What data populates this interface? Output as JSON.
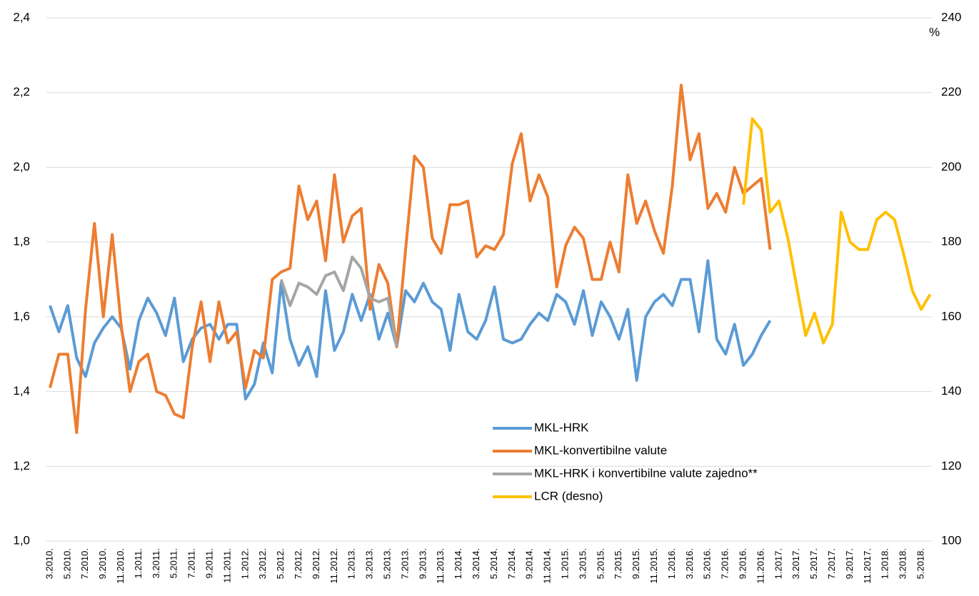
{
  "chart_data": {
    "type": "line",
    "categories": [
      "3.2010.",
      null,
      "5.2010.",
      null,
      "7.2010.",
      null,
      "9.2010.",
      null,
      "11.2010.",
      null,
      "1.2011.",
      null,
      "3.2011.",
      null,
      "5.2011.",
      null,
      "7.2011.",
      null,
      "9.2011.",
      null,
      "11.2011.",
      null,
      "1.2012.",
      null,
      "3.2012.",
      null,
      "5.2012.",
      null,
      "7.2012.",
      null,
      "9.2012.",
      null,
      "11.2012.",
      null,
      "1.2013.",
      null,
      "3.2013.",
      null,
      "5.2013.",
      null,
      "7.2013.",
      null,
      "9.2013.",
      null,
      "11.2013.",
      null,
      "1.2014.",
      null,
      "3.2014.",
      null,
      "5.2014.",
      null,
      "7.2014.",
      null,
      "9.2014.",
      null,
      "11.2014.",
      null,
      "1.2015.",
      null,
      "3.2015.",
      null,
      "5.2015.",
      null,
      "7.2015.",
      null,
      "9.2015.",
      null,
      "11.2015.",
      null,
      "1.2016.",
      null,
      "3.2016.",
      null,
      "5.2016.",
      null,
      "7.2016.",
      null,
      "9.2016.",
      null,
      "11.2016.",
      null,
      "1.2017.",
      null,
      "3.2017.",
      null,
      "5.2017.",
      null,
      "7.2017.",
      null,
      "9.2017.",
      null,
      "11.2017.",
      null,
      "1.2018.",
      null,
      "3.2018.",
      null,
      "5.2018.",
      null
    ],
    "series": [
      {
        "name": "MKL-HRK",
        "color": "#5b9bd5",
        "values": [
          1.63,
          1.56,
          1.63,
          1.49,
          1.44,
          1.53,
          1.57,
          1.6,
          1.57,
          1.46,
          1.59,
          1.65,
          1.61,
          1.55,
          1.65,
          1.48,
          1.54,
          1.57,
          1.58,
          1.54,
          1.58,
          1.58,
          1.38,
          1.42,
          1.53,
          1.45,
          1.69,
          1.54,
          1.47,
          1.52,
          1.44,
          1.67,
          1.51,
          1.56,
          1.66,
          1.59,
          1.66,
          1.54,
          1.61,
          1.52,
          1.67,
          1.64,
          1.69,
          1.64,
          1.62,
          1.51,
          1.66,
          1.56,
          1.54,
          1.59,
          1.68,
          1.54,
          1.53,
          1.54,
          1.58,
          1.61,
          1.59,
          1.66,
          1.64,
          1.58,
          1.67,
          1.55,
          1.64,
          1.6,
          1.54,
          1.62,
          1.43,
          1.6,
          1.64,
          1.66,
          1.63,
          1.7,
          1.7,
          1.56,
          1.75,
          1.54,
          1.5,
          1.58,
          1.47,
          1.5,
          1.55,
          1.59,
          null,
          null,
          null,
          null,
          null,
          null,
          null,
          null,
          null,
          null,
          null,
          null,
          null,
          null,
          null,
          null,
          null,
          null
        ]
      },
      {
        "name": "MKL-konvertibilne valute",
        "color": "#ed7d31",
        "values": [
          1.41,
          1.5,
          1.5,
          1.29,
          1.62,
          1.85,
          1.6,
          1.82,
          1.58,
          1.4,
          1.48,
          1.5,
          1.4,
          1.39,
          1.34,
          1.33,
          1.52,
          1.64,
          1.48,
          1.64,
          1.53,
          1.56,
          1.41,
          1.51,
          1.49,
          1.7,
          1.72,
          1.73,
          1.95,
          1.86,
          1.91,
          1.75,
          1.98,
          1.8,
          1.87,
          1.89,
          1.62,
          1.74,
          1.69,
          1.52,
          1.78,
          2.03,
          2.0,
          1.81,
          1.77,
          1.9,
          1.9,
          1.91,
          1.76,
          1.79,
          1.78,
          1.82,
          2.01,
          2.09,
          1.91,
          1.98,
          1.92,
          1.68,
          1.79,
          1.84,
          1.81,
          1.7,
          1.7,
          1.8,
          1.72,
          1.98,
          1.85,
          1.91,
          1.83,
          1.77,
          1.95,
          2.22,
          2.02,
          2.09,
          1.89,
          1.93,
          1.88,
          2.0,
          1.93,
          1.95,
          1.97,
          1.78,
          null,
          null,
          null,
          null,
          null,
          null,
          null,
          null,
          null,
          null,
          null,
          null,
          null,
          null,
          null,
          null,
          null,
          null
        ]
      },
      {
        "name": "MKL-HRK i konvertibilne valute zajedno**",
        "color": "#a5a5a5",
        "values": [
          null,
          null,
          null,
          null,
          null,
          null,
          null,
          null,
          null,
          null,
          null,
          null,
          null,
          null,
          null,
          null,
          null,
          null,
          null,
          null,
          null,
          null,
          null,
          null,
          null,
          null,
          1.7,
          1.63,
          1.69,
          1.68,
          1.66,
          1.71,
          1.72,
          1.67,
          1.76,
          1.73,
          1.65,
          1.64,
          1.65,
          1.52,
          null,
          null,
          null,
          null,
          null,
          null,
          null,
          null,
          null,
          null,
          null,
          null,
          null,
          null,
          null,
          null,
          null,
          null,
          null,
          null,
          null,
          null,
          null,
          null,
          null,
          null,
          null,
          null,
          null,
          null,
          null,
          null,
          null,
          null,
          null,
          null,
          null,
          null,
          null,
          null,
          null,
          null,
          null,
          null,
          null,
          null,
          null,
          null,
          null,
          null,
          null,
          null,
          null,
          null,
          null,
          null,
          null,
          null,
          null,
          null
        ]
      },
      {
        "name": "LCR (desno)",
        "color": "#ffc000",
        "axis": "y2",
        "values": [
          null,
          null,
          null,
          null,
          null,
          null,
          null,
          null,
          null,
          null,
          null,
          null,
          null,
          null,
          null,
          null,
          null,
          null,
          null,
          null,
          null,
          null,
          null,
          null,
          null,
          null,
          null,
          null,
          null,
          null,
          null,
          null,
          null,
          null,
          null,
          null,
          null,
          null,
          null,
          null,
          null,
          null,
          null,
          null,
          null,
          null,
          null,
          null,
          null,
          null,
          null,
          null,
          null,
          null,
          null,
          null,
          null,
          null,
          null,
          null,
          null,
          null,
          null,
          null,
          null,
          null,
          null,
          null,
          null,
          null,
          null,
          null,
          null,
          null,
          null,
          null,
          null,
          null,
          190,
          213,
          210,
          188,
          191,
          181,
          168,
          155,
          161,
          153,
          158,
          188,
          180,
          178,
          178,
          186,
          188,
          186,
          177,
          167,
          162,
          166
        ]
      }
    ],
    "ylim": [
      1.0,
      2.4
    ],
    "yticks": [
      {
        "value": 1.0,
        "label": "1,0"
      },
      {
        "value": 1.2,
        "label": "1,2"
      },
      {
        "value": 1.4,
        "label": "1,4"
      },
      {
        "value": 1.6,
        "label": "1,6"
      },
      {
        "value": 1.8,
        "label": "1,8"
      },
      {
        "value": 2.0,
        "label": "2,0"
      },
      {
        "value": 2.2,
        "label": "2,2"
      },
      {
        "value": 2.4,
        "label": "2,4"
      }
    ],
    "y2lim": [
      100,
      240
    ],
    "y2ticks": [
      100,
      120,
      140,
      160,
      180,
      200,
      220,
      240
    ],
    "y2label": "%",
    "grid": true
  }
}
